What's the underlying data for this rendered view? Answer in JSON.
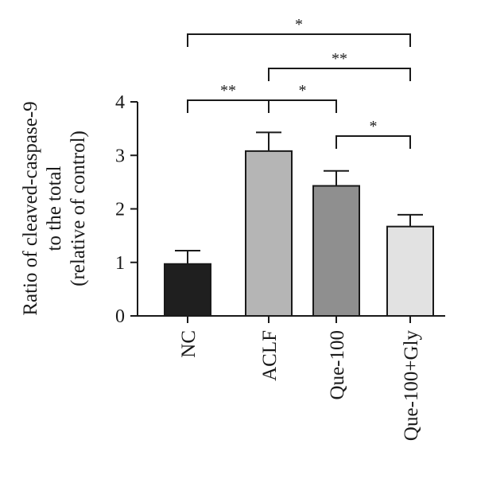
{
  "chart_data": {
    "type": "bar",
    "ylabel_lines": [
      "Ratio of cleaved-caspase-9",
      "to the total",
      "(relative of control)"
    ],
    "categories": [
      "NC",
      "ACLF",
      "Que-100",
      "Que-100+Gly"
    ],
    "values": [
      0.97,
      3.08,
      2.43,
      1.67
    ],
    "errors": [
      0.25,
      0.35,
      0.28,
      0.22
    ],
    "bar_colors": [
      "#1f1f1f",
      "#b5b5b5",
      "#8f8f8f",
      "#e2e2e2"
    ],
    "ylim": [
      0,
      4
    ],
    "yticks": [
      0,
      1,
      2,
      3,
      4
    ],
    "grid": false,
    "significance": [
      {
        "from": 0,
        "to": 3,
        "label": "*"
      },
      {
        "from": 1,
        "to": 3,
        "label": "**"
      },
      {
        "from": 0,
        "to": 1,
        "label": "**"
      },
      {
        "from": 1,
        "to": 2,
        "label": "*"
      },
      {
        "from": 2,
        "to": 3,
        "label": "*"
      }
    ]
  }
}
